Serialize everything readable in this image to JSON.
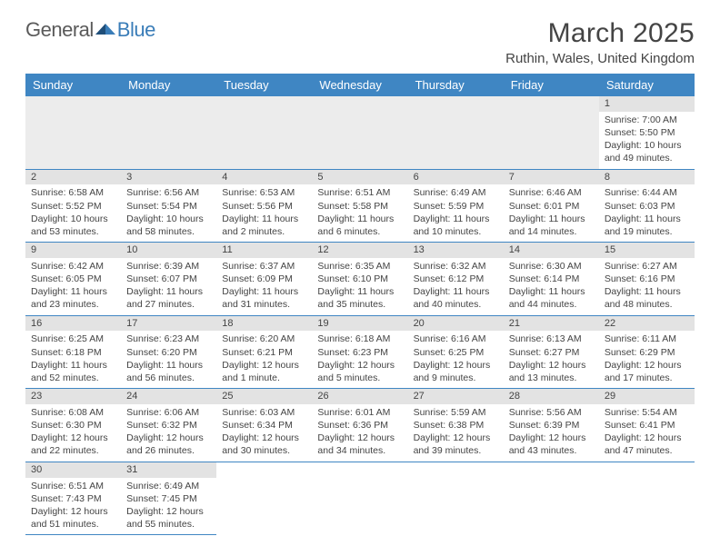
{
  "logo": {
    "word1": "General",
    "word2": "Blue"
  },
  "title": "March 2025",
  "location": "Ruthin, Wales, United Kingdom",
  "colors": {
    "header_bg": "#3f86c3",
    "header_text": "#ffffff",
    "row_divider": "#3f86c3",
    "daynum_bg": "#e3e3e3",
    "blank_bg": "#ececec",
    "text": "#444444",
    "logo_gray": "#5a5a5a",
    "logo_blue": "#3a7db8",
    "triangle_dark": "#1f4e79",
    "triangle_light": "#3a7db8"
  },
  "fonts": {
    "title_size": 30,
    "location_size": 15,
    "logo_size": 22,
    "dayheader_size": 13,
    "cell_size": 10.5
  },
  "day_headers": [
    "Sunday",
    "Monday",
    "Tuesday",
    "Wednesday",
    "Thursday",
    "Friday",
    "Saturday"
  ],
  "layout": {
    "columns": 7,
    "rows": 6,
    "first_day_column_index": 6
  },
  "days": [
    {
      "n": "1",
      "sunrise": "7:00 AM",
      "sunset": "5:50 PM",
      "daylight": "10 hours and 49 minutes."
    },
    {
      "n": "2",
      "sunrise": "6:58 AM",
      "sunset": "5:52 PM",
      "daylight": "10 hours and 53 minutes."
    },
    {
      "n": "3",
      "sunrise": "6:56 AM",
      "sunset": "5:54 PM",
      "daylight": "10 hours and 58 minutes."
    },
    {
      "n": "4",
      "sunrise": "6:53 AM",
      "sunset": "5:56 PM",
      "daylight": "11 hours and 2 minutes."
    },
    {
      "n": "5",
      "sunrise": "6:51 AM",
      "sunset": "5:58 PM",
      "daylight": "11 hours and 6 minutes."
    },
    {
      "n": "6",
      "sunrise": "6:49 AM",
      "sunset": "5:59 PM",
      "daylight": "11 hours and 10 minutes."
    },
    {
      "n": "7",
      "sunrise": "6:46 AM",
      "sunset": "6:01 PM",
      "daylight": "11 hours and 14 minutes."
    },
    {
      "n": "8",
      "sunrise": "6:44 AM",
      "sunset": "6:03 PM",
      "daylight": "11 hours and 19 minutes."
    },
    {
      "n": "9",
      "sunrise": "6:42 AM",
      "sunset": "6:05 PM",
      "daylight": "11 hours and 23 minutes."
    },
    {
      "n": "10",
      "sunrise": "6:39 AM",
      "sunset": "6:07 PM",
      "daylight": "11 hours and 27 minutes."
    },
    {
      "n": "11",
      "sunrise": "6:37 AM",
      "sunset": "6:09 PM",
      "daylight": "11 hours and 31 minutes."
    },
    {
      "n": "12",
      "sunrise": "6:35 AM",
      "sunset": "6:10 PM",
      "daylight": "11 hours and 35 minutes."
    },
    {
      "n": "13",
      "sunrise": "6:32 AM",
      "sunset": "6:12 PM",
      "daylight": "11 hours and 40 minutes."
    },
    {
      "n": "14",
      "sunrise": "6:30 AM",
      "sunset": "6:14 PM",
      "daylight": "11 hours and 44 minutes."
    },
    {
      "n": "15",
      "sunrise": "6:27 AM",
      "sunset": "6:16 PM",
      "daylight": "11 hours and 48 minutes."
    },
    {
      "n": "16",
      "sunrise": "6:25 AM",
      "sunset": "6:18 PM",
      "daylight": "11 hours and 52 minutes."
    },
    {
      "n": "17",
      "sunrise": "6:23 AM",
      "sunset": "6:20 PM",
      "daylight": "11 hours and 56 minutes."
    },
    {
      "n": "18",
      "sunrise": "6:20 AM",
      "sunset": "6:21 PM",
      "daylight": "12 hours and 1 minute."
    },
    {
      "n": "19",
      "sunrise": "6:18 AM",
      "sunset": "6:23 PM",
      "daylight": "12 hours and 5 minutes."
    },
    {
      "n": "20",
      "sunrise": "6:16 AM",
      "sunset": "6:25 PM",
      "daylight": "12 hours and 9 minutes."
    },
    {
      "n": "21",
      "sunrise": "6:13 AM",
      "sunset": "6:27 PM",
      "daylight": "12 hours and 13 minutes."
    },
    {
      "n": "22",
      "sunrise": "6:11 AM",
      "sunset": "6:29 PM",
      "daylight": "12 hours and 17 minutes."
    },
    {
      "n": "23",
      "sunrise": "6:08 AM",
      "sunset": "6:30 PM",
      "daylight": "12 hours and 22 minutes."
    },
    {
      "n": "24",
      "sunrise": "6:06 AM",
      "sunset": "6:32 PM",
      "daylight": "12 hours and 26 minutes."
    },
    {
      "n": "25",
      "sunrise": "6:03 AM",
      "sunset": "6:34 PM",
      "daylight": "12 hours and 30 minutes."
    },
    {
      "n": "26",
      "sunrise": "6:01 AM",
      "sunset": "6:36 PM",
      "daylight": "12 hours and 34 minutes."
    },
    {
      "n": "27",
      "sunrise": "5:59 AM",
      "sunset": "6:38 PM",
      "daylight": "12 hours and 39 minutes."
    },
    {
      "n": "28",
      "sunrise": "5:56 AM",
      "sunset": "6:39 PM",
      "daylight": "12 hours and 43 minutes."
    },
    {
      "n": "29",
      "sunrise": "5:54 AM",
      "sunset": "6:41 PM",
      "daylight": "12 hours and 47 minutes."
    },
    {
      "n": "30",
      "sunrise": "6:51 AM",
      "sunset": "7:43 PM",
      "daylight": "12 hours and 51 minutes."
    },
    {
      "n": "31",
      "sunrise": "6:49 AM",
      "sunset": "7:45 PM",
      "daylight": "12 hours and 55 minutes."
    }
  ],
  "labels": {
    "sunrise": "Sunrise:",
    "sunset": "Sunset:",
    "daylight": "Daylight:"
  }
}
